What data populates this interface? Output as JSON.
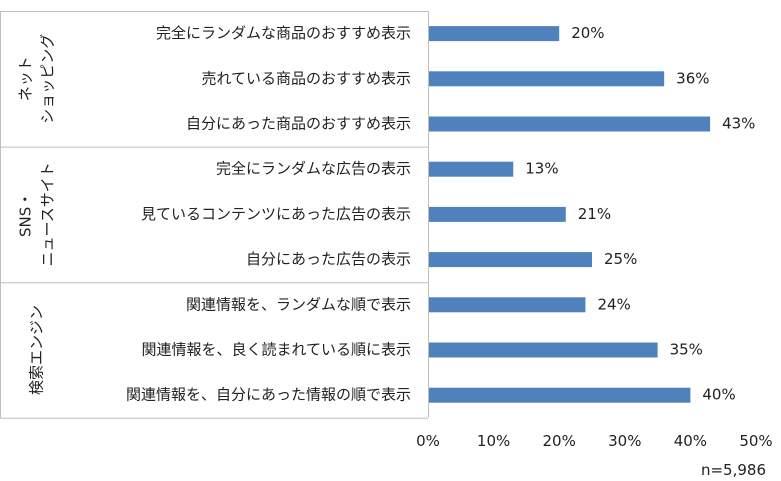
{
  "chart_data": {
    "type": "bar",
    "orientation": "horizontal",
    "groups": [
      {
        "label_lines": [
          "ネット",
          "ショッピング"
        ],
        "categories": [
          "完全にランダムな商品のおすすめ表示",
          "売れている商品のおすすめ表示",
          "自分にあった商品のおすすめ表示"
        ],
        "values": [
          20,
          36,
          43
        ]
      },
      {
        "label_lines": [
          "SNS・",
          "ニュースサイト"
        ],
        "categories": [
          "完全にランダムな広告の表示",
          "見ているコンテンツにあった広告の表示",
          "自分にあった広告の表示"
        ],
        "values": [
          13,
          21,
          25
        ]
      },
      {
        "label_lines": [
          "検索エンジン"
        ],
        "categories": [
          "関連情報を、ランダムな順で表示",
          "関連情報を、良く読まれている順に表示",
          "関連情報を、自分にあった情報の順で表示"
        ],
        "values": [
          24,
          35,
          40
        ]
      }
    ],
    "value_suffix": "%",
    "xlim": [
      0,
      50
    ],
    "xticks": [
      "0%",
      "10%",
      "20%",
      "30%",
      "40%",
      "50%"
    ],
    "grid": false,
    "bar_color": "#4f81bd",
    "note": "n=5,986"
  }
}
